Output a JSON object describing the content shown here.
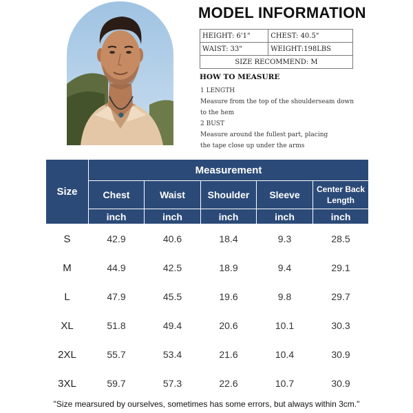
{
  "model": {
    "title": "MODEL INFORMATION",
    "height": "HEIGHT: 6'1\"",
    "chest": "CHEST: 40.5\"",
    "waist": "WAIST: 33\"",
    "weight": "WEIGHT:198LBS",
    "size_recommend": "SIZE RECOMMEND: M"
  },
  "how_to_measure": {
    "title": "HOW TO MEASURE",
    "lines": [
      "1 LENGTH",
      "Measure from the top of the shoulderseam down",
      "to the hem",
      "2 BUST",
      "Measure around the fullest part, placing",
      "the tape close up under the arms"
    ]
  },
  "size_table": {
    "size_header": "Size",
    "measurement_header": "Measurement",
    "columns": [
      "Chest",
      "Waist",
      "Shoulder",
      "Sleeve",
      "Center Back Length"
    ],
    "units": [
      "inch",
      "inch",
      "inch",
      "inch",
      "inch"
    ],
    "rows": [
      {
        "size": "S",
        "values": [
          "42.9",
          "40.6",
          "18.4",
          "9.3",
          "28.5"
        ]
      },
      {
        "size": "M",
        "values": [
          "44.9",
          "42.5",
          "18.9",
          "9.4",
          "29.1"
        ]
      },
      {
        "size": "L",
        "values": [
          "47.9",
          "45.5",
          "19.6",
          "9.8",
          "29.7"
        ]
      },
      {
        "size": "XL",
        "values": [
          "51.8",
          "49.4",
          "20.6",
          "10.1",
          "30.3"
        ]
      },
      {
        "size": "2XL",
        "values": [
          "55.7",
          "53.4",
          "21.6",
          "10.4",
          "30.9"
        ]
      },
      {
        "size": "3XL",
        "values": [
          "59.7",
          "57.3",
          "22.6",
          "10.7",
          "30.9"
        ]
      }
    ]
  },
  "footnote": "\"Size mearsured by ourselves, sometimes has some errors, but always within 3cm.\"",
  "colors": {
    "header_bg": "#2b4a78",
    "header_text": "#ffffff"
  }
}
